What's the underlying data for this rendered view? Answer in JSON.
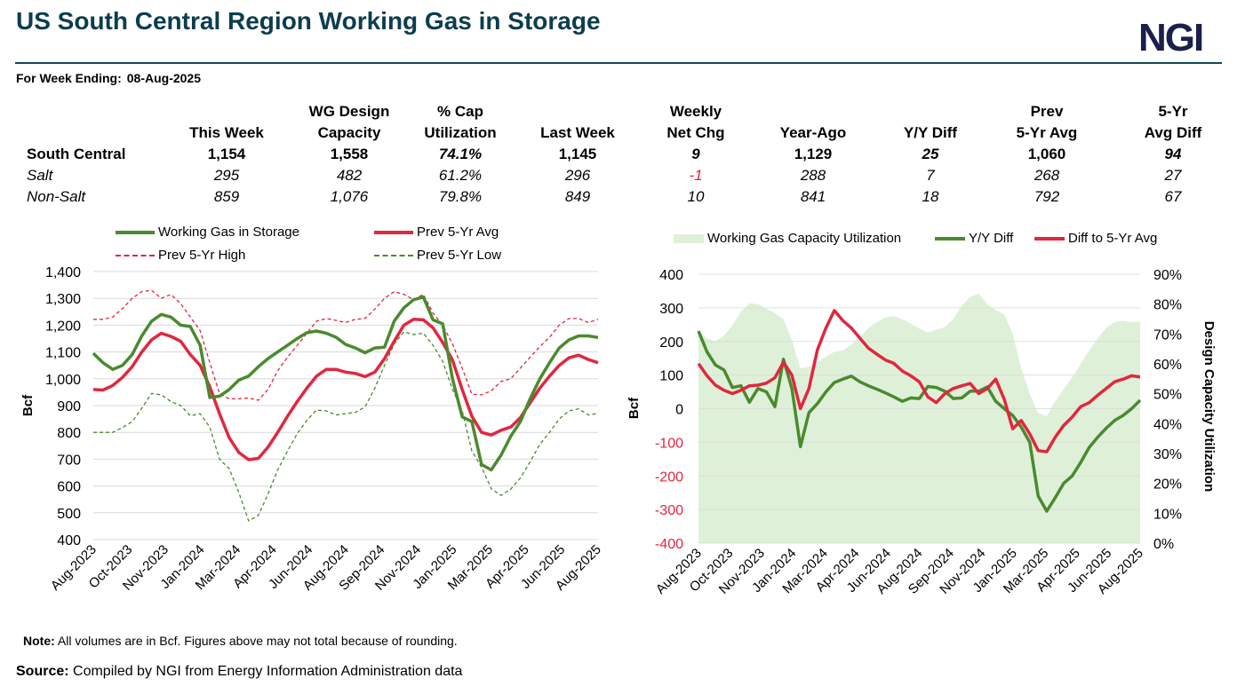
{
  "header": {
    "title": "US South Central Region Working Gas in Storage",
    "logo": "NGI",
    "week_label": "For Week Ending:",
    "week_value": "08-Aug-2025"
  },
  "table": {
    "headers_top": [
      "",
      "",
      "WG Design",
      "% Cap",
      "",
      "Weekly",
      "",
      "",
      "Prev",
      "5-Yr"
    ],
    "headers_bottom": [
      "",
      "This Week",
      "Capacity",
      "Utilization",
      "Last Week",
      "Net Chg",
      "Year-Ago",
      "Y/Y Diff",
      "5-Yr Avg",
      "Avg Diff"
    ],
    "rows": [
      [
        "South Central",
        "1,154",
        "1,558",
        "74.1%",
        "1,145",
        "9",
        "1,129",
        "25",
        "1,060",
        "94"
      ],
      [
        "Salt",
        "295",
        "482",
        "61.2%",
        "296",
        "-1",
        "288",
        "7",
        "268",
        "27"
      ],
      [
        "Non-Salt",
        "859",
        "1,076",
        "79.8%",
        "849",
        "10",
        "841",
        "18",
        "792",
        "67"
      ]
    ]
  },
  "colors": {
    "green": "#4a8a2f",
    "red": "#e2263f",
    "area": "#dff0d8",
    "title": "#0b3d4f"
  },
  "chart_data": [
    {
      "type": "line",
      "ylabel": "Bcf",
      "ylim": [
        400,
        1400
      ],
      "yticks": [
        "1,400",
        "1,300",
        "1,200",
        "1,100",
        "1,000",
        "900",
        "800",
        "700",
        "600",
        "500",
        "400"
      ],
      "xtick_labels": [
        "Aug-2023",
        "Oct-2023",
        "Nov-2023",
        "Jan-2024",
        "Mar-2024",
        "Apr-2024",
        "Jun-2024",
        "Aug-2024",
        "Sep-2024",
        "Nov-2024",
        "Jan-2025",
        "Mar-2025",
        "Apr-2025",
        "Jun-2025",
        "Aug-2025"
      ],
      "grid": true,
      "legend": "top",
      "x": [
        "2023-08-11",
        "2023-08-25",
        "2023-09-08",
        "2023-09-22",
        "2023-10-06",
        "2023-10-20",
        "2023-11-03",
        "2023-11-17",
        "2023-12-01",
        "2023-12-15",
        "2023-12-29",
        "2024-01-12",
        "2024-01-26",
        "2024-02-09",
        "2024-02-23",
        "2024-03-08",
        "2024-03-22",
        "2024-04-05",
        "2024-04-19",
        "2024-05-03",
        "2024-05-17",
        "2024-05-31",
        "2024-06-14",
        "2024-06-28",
        "2024-07-12",
        "2024-07-26",
        "2024-08-09",
        "2024-08-23",
        "2024-09-06",
        "2024-09-20",
        "2024-10-04",
        "2024-10-18",
        "2024-11-01",
        "2024-11-15",
        "2024-11-29",
        "2024-12-13",
        "2024-12-27",
        "2025-01-10",
        "2025-01-24",
        "2025-02-07",
        "2025-02-21",
        "2025-03-07",
        "2025-03-21",
        "2025-04-04",
        "2025-04-18",
        "2025-05-02",
        "2025-05-16",
        "2025-05-30",
        "2025-06-13",
        "2025-06-27",
        "2025-07-11",
        "2025-07-25",
        "2025-08-08"
      ],
      "series": [
        {
          "name": "Working Gas in Storage",
          "style": "solid",
          "color": "#4a8a2f",
          "values": [
            1095,
            1060,
            1035,
            1050,
            1090,
            1160,
            1215,
            1240,
            1230,
            1200,
            1195,
            1125,
            930,
            935,
            960,
            995,
            1010,
            1045,
            1075,
            1100,
            1125,
            1150,
            1172,
            1178,
            1170,
            1155,
            1128,
            1115,
            1097,
            1115,
            1118,
            1215,
            1265,
            1295,
            1305,
            1220,
            1205,
            1000,
            858,
            840,
            680,
            660,
            715,
            785,
            840,
            925,
            1000,
            1060,
            1115,
            1145,
            1160,
            1160,
            1154
          ]
        },
        {
          "name": "Prev 5-Yr Avg",
          "style": "solid",
          "color": "#e2263f",
          "values": [
            960,
            958,
            975,
            1005,
            1045,
            1100,
            1145,
            1170,
            1158,
            1140,
            1090,
            1050,
            970,
            870,
            780,
            725,
            698,
            703,
            745,
            800,
            860,
            915,
            965,
            1010,
            1035,
            1035,
            1025,
            1020,
            1008,
            1025,
            1075,
            1140,
            1200,
            1222,
            1220,
            1190,
            1135,
            1070,
            960,
            860,
            800,
            790,
            808,
            820,
            855,
            910,
            965,
            1010,
            1050,
            1078,
            1088,
            1072,
            1060
          ]
        },
        {
          "name": "Prev 5-Yr High",
          "style": "dashed",
          "color": "#e2263f",
          "values": [
            1222,
            1222,
            1230,
            1262,
            1300,
            1325,
            1330,
            1300,
            1315,
            1280,
            1230,
            1180,
            1060,
            945,
            925,
            925,
            928,
            920,
            960,
            1030,
            1080,
            1125,
            1170,
            1215,
            1225,
            1218,
            1210,
            1222,
            1225,
            1260,
            1300,
            1325,
            1315,
            1295,
            1315,
            1245,
            1200,
            1130,
            1040,
            942,
            940,
            955,
            990,
            1000,
            1040,
            1080,
            1120,
            1155,
            1200,
            1225,
            1225,
            1210,
            1222
          ]
        },
        {
          "name": "Prev 5-Yr Low",
          "style": "dashed",
          "color": "#4a8a2f",
          "values": [
            800,
            800,
            800,
            818,
            840,
            890,
            945,
            940,
            915,
            900,
            862,
            870,
            820,
            700,
            665,
            575,
            470,
            490,
            570,
            660,
            730,
            795,
            845,
            883,
            880,
            865,
            870,
            875,
            895,
            965,
            1050,
            1130,
            1175,
            1165,
            1170,
            1125,
            1065,
            960,
            880,
            730,
            670,
            590,
            565,
            588,
            630,
            690,
            755,
            800,
            850,
            880,
            888,
            865,
            871
          ]
        }
      ]
    },
    {
      "type": "line+area",
      "ylabel": "Bcf",
      "ylabel_right": "Design Capacity Utilization",
      "ylim": [
        -400,
        400
      ],
      "ylim_right": [
        0,
        90
      ],
      "yticks": [
        "400",
        "300",
        "200",
        "100",
        "0",
        "-100",
        "-200",
        "-300",
        "-400"
      ],
      "yticks_right": [
        "90%",
        "80%",
        "70%",
        "60%",
        "50%",
        "40%",
        "30%",
        "20%",
        "10%",
        "0%"
      ],
      "xtick_labels": [
        "Aug-2023",
        "Oct-2023",
        "Nov-2023",
        "Jan-2024",
        "Mar-2024",
        "Apr-2024",
        "Jun-2024",
        "Aug-2024",
        "Sep-2024",
        "Nov-2024",
        "Jan-2025",
        "Mar-2025",
        "Apr-2025",
        "Jun-2025",
        "Aug-2025"
      ],
      "grid": true,
      "legend": "top",
      "series": [
        {
          "name": "Working Gas Capacity Utilization",
          "axis": "right",
          "type": "area",
          "unit": "%",
          "color": "#dff0d8",
          "values": [
            71,
            68.5,
            67.5,
            69.5,
            73,
            77.5,
            80.3,
            80,
            78.5,
            77,
            75,
            68,
            58.5,
            59,
            60.5,
            62.5,
            64,
            64.5,
            66.5,
            69,
            72,
            74,
            75.5,
            76,
            75,
            73.5,
            71.8,
            70.5,
            71.5,
            72.3,
            75,
            79.5,
            82.5,
            83.5,
            80,
            78,
            76.5,
            70,
            58.5,
            50,
            43.5,
            42.5,
            47.5,
            51.5,
            55.5,
            60,
            64.5,
            68.5,
            72,
            74,
            74.5,
            74,
            74.1
          ]
        },
        {
          "name": "Y/Y Diff",
          "axis": "left",
          "type": "line",
          "color": "#4a8a2f",
          "values": [
            231,
            169,
            130,
            115,
            63,
            68,
            19,
            60,
            50,
            6,
            147,
            60,
            -113,
            -12,
            15,
            50,
            78,
            88,
            97,
            80,
            68,
            58,
            47,
            35,
            22,
            32,
            30,
            66,
            63,
            52,
            30,
            32,
            52,
            52,
            65,
            22,
            0,
            -20,
            -55,
            -100,
            -260,
            -305,
            -265,
            -222,
            -200,
            -160,
            -115,
            -85,
            -58,
            -35,
            -20,
            0,
            25
          ]
        },
        {
          "name": "Diff to 5-Yr Avg",
          "axis": "left",
          "type": "line",
          "color": "#e2263f",
          "values": [
            134,
            98,
            70,
            55,
            45,
            55,
            68,
            70,
            76,
            92,
            138,
            100,
            0,
            60,
            175,
            240,
            292,
            262,
            240,
            210,
            180,
            162,
            145,
            135,
            112,
            98,
            80,
            35,
            18,
            45,
            60,
            68,
            75,
            45,
            60,
            88,
            28,
            -60,
            -35,
            -75,
            -125,
            -128,
            -85,
            -50,
            -25,
            6,
            18,
            40,
            60,
            80,
            88,
            98,
            94
          ]
        }
      ]
    }
  ],
  "footer": {
    "note_label": "Note:",
    "note_text": " All volumes  are in Bcf. Figures above may not total  because of rounding.",
    "source_label": "Source:",
    "source_text": " Compiled by NGI from Energy Information Administration data"
  }
}
